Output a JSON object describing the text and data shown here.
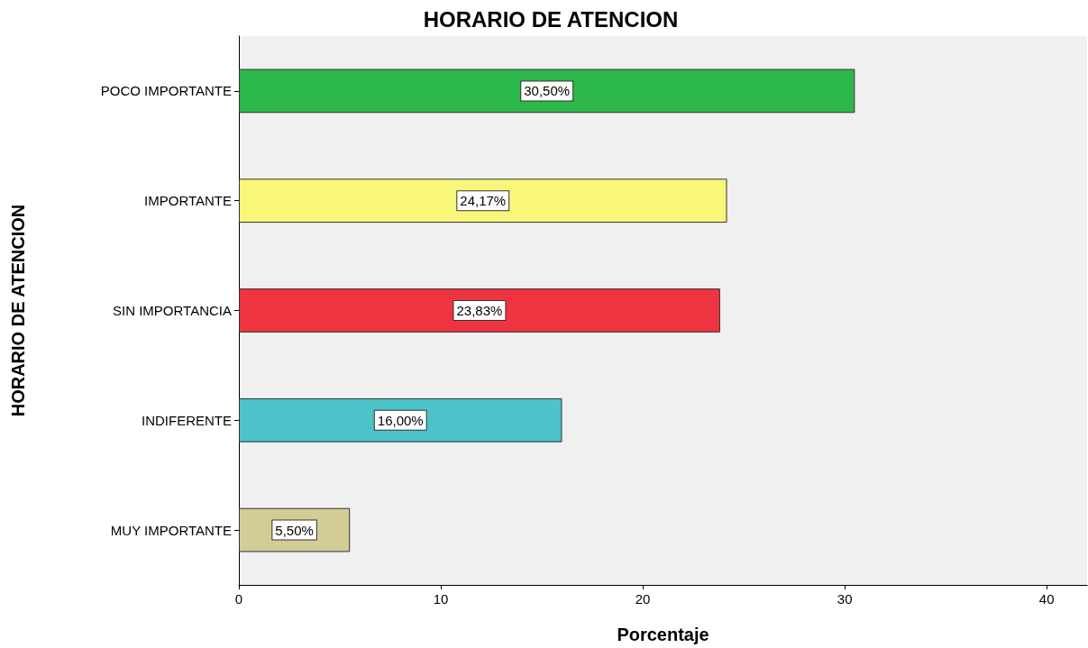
{
  "chart_data": {
    "type": "bar",
    "orientation": "horizontal",
    "title": "HORARIO DE ATENCION",
    "xlabel": "Porcentaje",
    "ylabel": "HORARIO DE ATENCION",
    "categories": [
      "POCO IMPORTANTE",
      "IMPORTANTE",
      "SIN IMPORTANCIA",
      "INDIFERENTE",
      "MUY IMPORTANTE"
    ],
    "values": [
      30.5,
      24.17,
      23.83,
      16.0,
      5.5
    ],
    "colors": [
      "#2db84b",
      "#f8f77a",
      "#ef3340",
      "#4bc3c8",
      "#d3cc97"
    ],
    "value_labels": [
      "30,50%",
      "24,17%",
      "23,83%",
      "16,00%",
      "5,50%"
    ],
    "xlim": [
      0,
      42
    ],
    "xticks": [
      0,
      10,
      20,
      30,
      40
    ]
  }
}
